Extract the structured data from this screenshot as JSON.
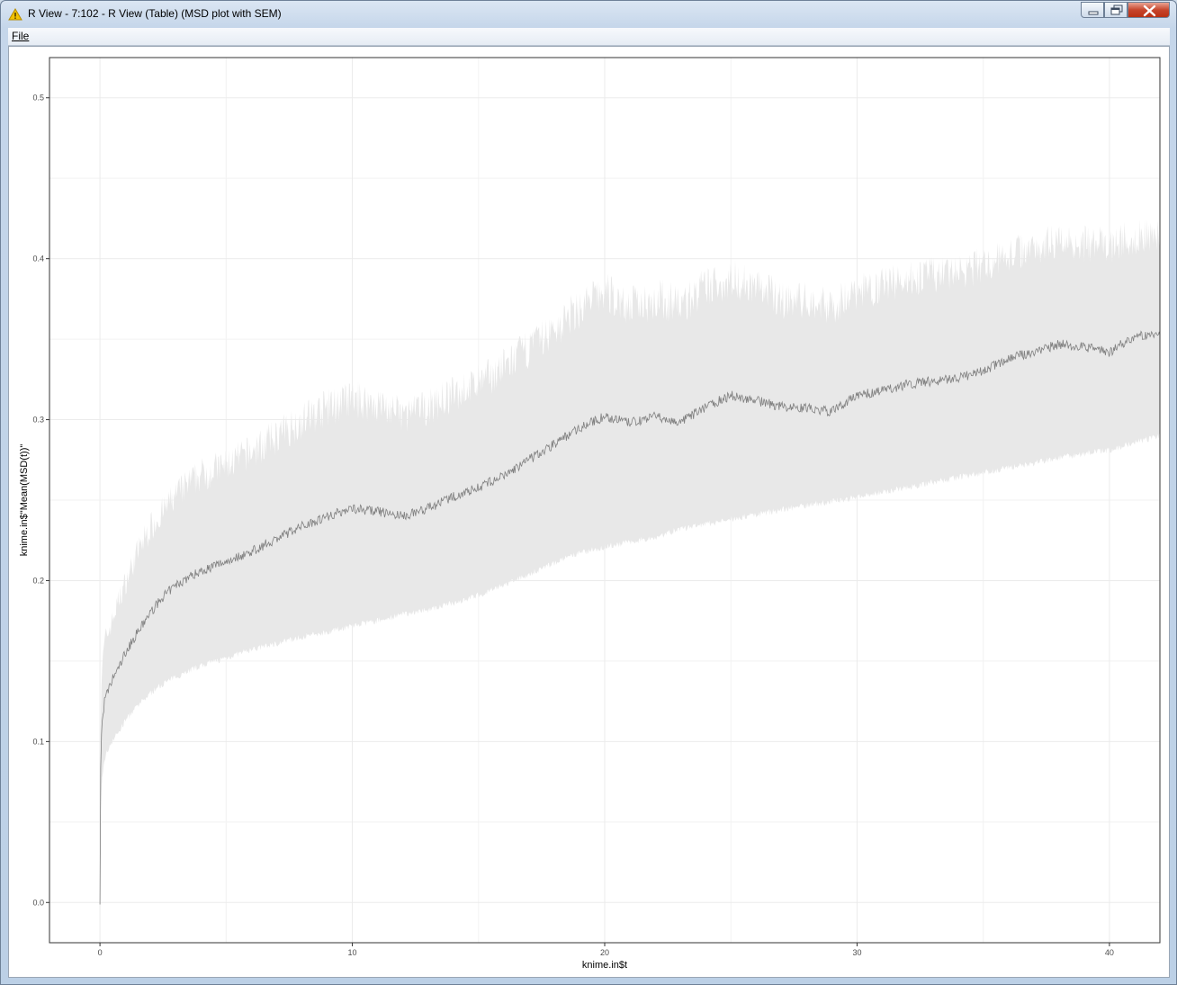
{
  "window": {
    "title": "R View - 7:102 - R View (Table) (MSD plot with SEM)"
  },
  "menu": {
    "file_label": "File"
  },
  "chart_data": {
    "type": "line",
    "title": "",
    "xlabel": "knime.in$t",
    "ylabel": "knime.in$\"Mean(MSD(t))\"",
    "xlim": [
      -2,
      42
    ],
    "ylim": [
      -0.025,
      0.525
    ],
    "x_ticks": [
      0,
      10,
      20,
      30,
      40
    ],
    "y_ticks": [
      0.0,
      0.1,
      0.2,
      0.3,
      0.4,
      0.5
    ],
    "x_tick_labels": [
      "0",
      "10",
      "20",
      "30",
      "40"
    ],
    "y_tick_labels": [
      "0.0",
      "0.1",
      "0.2",
      "0.3",
      "0.4",
      "0.5"
    ],
    "grid": true,
    "legend": "none",
    "colors": {
      "mean_line": "#808080",
      "ribbon": "#e8e8e8",
      "grid": "#ebebeb",
      "panel_border": "#333333"
    },
    "series": [
      {
        "x": [
          0,
          0.02,
          0.05,
          0.1,
          0.2,
          0.35,
          0.5,
          0.75,
          1,
          1.5,
          2,
          2.5,
          3,
          3.5,
          4,
          5,
          6,
          7,
          8,
          9,
          10,
          11,
          12,
          13,
          14,
          15,
          16,
          17,
          18,
          19,
          20,
          21,
          22,
          23,
          24,
          25,
          26,
          27,
          28,
          29,
          30,
          31,
          32,
          33,
          34,
          35,
          36,
          37,
          38,
          39,
          40,
          41,
          42
        ],
        "mean": [
          0,
          0.075,
          0.1,
          0.115,
          0.127,
          0.132,
          0.139,
          0.146,
          0.155,
          0.168,
          0.18,
          0.19,
          0.197,
          0.202,
          0.206,
          0.212,
          0.218,
          0.226,
          0.234,
          0.24,
          0.245,
          0.243,
          0.24,
          0.245,
          0.252,
          0.258,
          0.265,
          0.275,
          0.285,
          0.295,
          0.302,
          0.298,
          0.302,
          0.298,
          0.308,
          0.315,
          0.312,
          0.308,
          0.307,
          0.305,
          0.315,
          0.318,
          0.322,
          0.324,
          0.326,
          0.33,
          0.338,
          0.342,
          0.347,
          0.345,
          0.342,
          0.352,
          0.352
        ],
        "lower": [
          0,
          0.045,
          0.065,
          0.08,
          0.09,
          0.096,
          0.101,
          0.106,
          0.113,
          0.122,
          0.13,
          0.136,
          0.14,
          0.144,
          0.147,
          0.152,
          0.157,
          0.161,
          0.165,
          0.168,
          0.172,
          0.175,
          0.179,
          0.182,
          0.186,
          0.191,
          0.197,
          0.204,
          0.211,
          0.217,
          0.221,
          0.224,
          0.227,
          0.232,
          0.235,
          0.238,
          0.241,
          0.244,
          0.247,
          0.249,
          0.252,
          0.255,
          0.258,
          0.261,
          0.264,
          0.267,
          0.27,
          0.273,
          0.276,
          0.279,
          0.281,
          0.286,
          0.29
        ],
        "upper": [
          0,
          0.105,
          0.135,
          0.15,
          0.165,
          0.17,
          0.177,
          0.19,
          0.2,
          0.22,
          0.235,
          0.245,
          0.255,
          0.262,
          0.268,
          0.274,
          0.282,
          0.292,
          0.302,
          0.31,
          0.315,
          0.312,
          0.305,
          0.31,
          0.318,
          0.325,
          0.335,
          0.347,
          0.358,
          0.372,
          0.382,
          0.373,
          0.378,
          0.374,
          0.384,
          0.39,
          0.386,
          0.377,
          0.376,
          0.373,
          0.382,
          0.386,
          0.39,
          0.392,
          0.394,
          0.398,
          0.405,
          0.41,
          0.414,
          0.412,
          0.41,
          0.416,
          0.418
        ]
      }
    ]
  }
}
